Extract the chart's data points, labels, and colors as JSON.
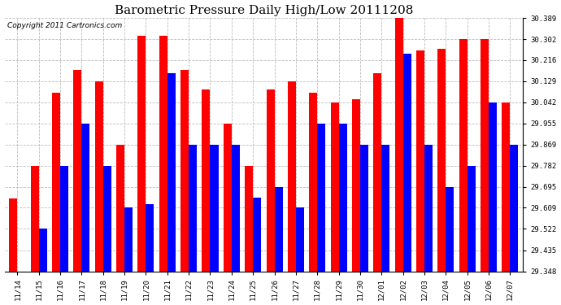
{
  "title": "Barometric Pressure Daily High/Low 20111208",
  "copyright": "Copyright 2011 Cartronics.com",
  "dates": [
    "11/14",
    "11/15",
    "11/16",
    "11/17",
    "11/18",
    "11/19",
    "11/20",
    "11/21",
    "11/22",
    "11/23",
    "11/24",
    "11/25",
    "11/26",
    "11/27",
    "11/28",
    "11/29",
    "11/30",
    "12/01",
    "12/02",
    "12/03",
    "12/04",
    "12/05",
    "12/06",
    "12/07"
  ],
  "highs": [
    29.648,
    29.782,
    30.082,
    30.175,
    30.129,
    29.869,
    30.315,
    30.315,
    30.175,
    30.095,
    29.955,
    29.782,
    30.095,
    30.129,
    30.082,
    30.042,
    30.055,
    30.162,
    30.389,
    30.255,
    30.262,
    30.302,
    30.302,
    30.042
  ],
  "lows": [
    29.348,
    29.522,
    29.782,
    29.955,
    29.782,
    29.609,
    29.625,
    30.162,
    29.869,
    29.869,
    29.869,
    29.65,
    29.695,
    29.609,
    29.955,
    29.955,
    29.869,
    29.869,
    30.242,
    29.869,
    29.695,
    29.782,
    30.042,
    29.869
  ],
  "yticks": [
    29.348,
    29.435,
    29.522,
    29.609,
    29.695,
    29.782,
    29.869,
    29.955,
    30.042,
    30.129,
    30.216,
    30.302,
    30.389
  ],
  "ymin": 29.348,
  "ymax": 30.389,
  "high_color": "#ff0000",
  "low_color": "#0000ff",
  "bg_color": "#ffffff",
  "grid_color": "#bbbbbb",
  "title_fontsize": 11,
  "copyright_fontsize": 6.5,
  "tick_fontsize": 6.5
}
